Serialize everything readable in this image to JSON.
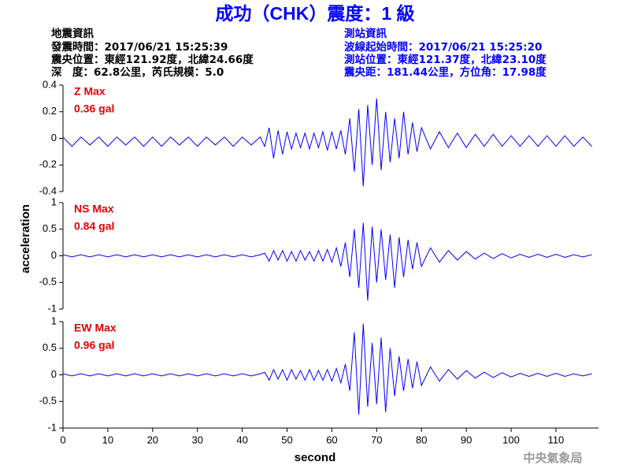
{
  "header": {
    "title": "成功（CHK）震度：1 級",
    "left_lines": [
      "地震資訊",
      "發震時間：2017/06/21 15:25:39",
      "震央位置：東經121.92度，北緯24.66度",
      "深　度：62.8公里，芮氏規模：5.0"
    ],
    "right_lines": [
      "測站資訊",
      "波線起始時間：2017/06/21 15:25:20",
      "測站位置：東經121.37度，北緯23.10度",
      "震央距：181.44公里，方位角：17.98度"
    ]
  },
  "axes": {
    "xlabel": "second",
    "ylabel": "acceleration"
  },
  "footer": "中央氣象局",
  "chart_data": [
    {
      "type": "line",
      "label": "Z Max",
      "annotation": "0.36 gal",
      "color": "#0000ff",
      "xlim": [
        0,
        119.5
      ],
      "ylim": [
        -0.4,
        0.4
      ],
      "yticks": [
        -0.4,
        -0.2,
        0,
        0.2,
        0.4
      ],
      "x": [
        0,
        2,
        4,
        6,
        8,
        10,
        12,
        14,
        16,
        18,
        20,
        22,
        24,
        26,
        28,
        30,
        32,
        34,
        36,
        38,
        40,
        42,
        44,
        45,
        46,
        47,
        48,
        49,
        50,
        51,
        52,
        53,
        54,
        55,
        56,
        57,
        58,
        59,
        60,
        61,
        62,
        63,
        64,
        65,
        66,
        67,
        68,
        69,
        70,
        71,
        72,
        73,
        74,
        75,
        76,
        77,
        78,
        79,
        80,
        82,
        84,
        86,
        88,
        90,
        92,
        94,
        96,
        98,
        100,
        102,
        104,
        106,
        108,
        110,
        112,
        114,
        116,
        118
      ],
      "values": [
        0.01,
        -0.06,
        0.01,
        -0.05,
        0.01,
        -0.06,
        0.01,
        -0.05,
        0.01,
        -0.06,
        0.01,
        -0.06,
        0.01,
        -0.05,
        0.01,
        -0.06,
        0.01,
        -0.05,
        0.01,
        -0.06,
        0.01,
        -0.05,
        0.01,
        -0.06,
        0.08,
        -0.15,
        0.06,
        -0.12,
        0.05,
        -0.08,
        0.04,
        -0.07,
        0.04,
        -0.08,
        0.04,
        -0.07,
        0.05,
        -0.09,
        0.05,
        -0.08,
        0.06,
        -0.12,
        0.15,
        -0.25,
        0.22,
        -0.36,
        0.25,
        -0.2,
        0.3,
        -0.24,
        0.2,
        -0.18,
        0.15,
        -0.15,
        0.2,
        -0.12,
        0.12,
        -0.1,
        0.08,
        -0.08,
        0.05,
        -0.07,
        0.04,
        -0.07,
        0.03,
        -0.06,
        0.03,
        -0.06,
        0.02,
        -0.06,
        0.02,
        -0.06,
        0.02,
        -0.06,
        0.02,
        -0.06,
        0.01,
        -0.06
      ]
    },
    {
      "type": "line",
      "label": "NS Max",
      "annotation": "0.84 gal",
      "color": "#0000ff",
      "xlim": [
        0,
        119.5
      ],
      "ylim": [
        -1,
        1
      ],
      "yticks": [
        -1,
        -0.5,
        0,
        0.5,
        1
      ],
      "x": [
        0,
        2,
        4,
        6,
        8,
        10,
        12,
        14,
        16,
        18,
        20,
        22,
        24,
        26,
        28,
        30,
        32,
        34,
        36,
        38,
        40,
        42,
        44,
        45,
        46,
        47,
        48,
        49,
        50,
        51,
        52,
        53,
        54,
        55,
        56,
        57,
        58,
        59,
        60,
        61,
        62,
        63,
        64,
        65,
        66,
        67,
        68,
        69,
        70,
        71,
        72,
        73,
        74,
        75,
        76,
        77,
        78,
        79,
        80,
        82,
        84,
        86,
        88,
        90,
        92,
        94,
        96,
        98,
        100,
        102,
        104,
        106,
        108,
        110,
        112,
        114,
        116,
        118
      ],
      "values": [
        0.02,
        -0.02,
        0.02,
        -0.02,
        0.02,
        -0.02,
        0.02,
        -0.02,
        0.02,
        -0.02,
        0.02,
        -0.02,
        0.02,
        -0.02,
        0.02,
        -0.02,
        0.02,
        -0.02,
        0.02,
        -0.02,
        0.02,
        -0.02,
        0.02,
        0.05,
        -0.1,
        0.1,
        -0.08,
        0.1,
        -0.1,
        0.08,
        -0.1,
        0.1,
        -0.08,
        0.08,
        -0.1,
        0.1,
        -0.1,
        0.12,
        -0.12,
        0.15,
        -0.2,
        0.25,
        -0.4,
        0.5,
        -0.6,
        0.62,
        -0.84,
        0.55,
        -0.5,
        0.5,
        -0.45,
        0.4,
        -0.6,
        0.35,
        -0.4,
        0.3,
        -0.25,
        0.25,
        -0.2,
        0.15,
        -0.12,
        0.1,
        -0.08,
        0.08,
        -0.06,
        0.05,
        -0.05,
        0.04,
        -0.04,
        0.03,
        -0.03,
        0.03,
        -0.03,
        0.03,
        -0.03,
        0.02,
        -0.02,
        0.02
      ]
    },
    {
      "type": "line",
      "label": "EW Max",
      "annotation": "0.96 gal",
      "color": "#0000ff",
      "xlim": [
        0,
        119.5
      ],
      "ylim": [
        -1,
        1
      ],
      "yticks": [
        -1,
        -0.5,
        0,
        0.5,
        1
      ],
      "xticks": [
        0,
        10,
        20,
        30,
        40,
        50,
        60,
        70,
        80,
        90,
        100,
        110
      ],
      "x": [
        0,
        2,
        4,
        6,
        8,
        10,
        12,
        14,
        16,
        18,
        20,
        22,
        24,
        26,
        28,
        30,
        32,
        34,
        36,
        38,
        40,
        42,
        44,
        45,
        46,
        47,
        48,
        49,
        50,
        51,
        52,
        53,
        54,
        55,
        56,
        57,
        58,
        59,
        60,
        61,
        62,
        63,
        64,
        65,
        66,
        67,
        68,
        69,
        70,
        71,
        72,
        73,
        74,
        75,
        76,
        77,
        78,
        79,
        80,
        82,
        84,
        86,
        88,
        90,
        92,
        94,
        96,
        98,
        100,
        102,
        104,
        106,
        108,
        110,
        112,
        114,
        116,
        118
      ],
      "values": [
        0.02,
        -0.02,
        0.02,
        -0.02,
        0.02,
        -0.02,
        0.02,
        -0.02,
        0.02,
        -0.02,
        0.02,
        -0.02,
        0.02,
        -0.02,
        0.02,
        -0.02,
        0.02,
        -0.02,
        0.02,
        -0.02,
        0.02,
        -0.02,
        0.02,
        0.05,
        -0.1,
        0.1,
        -0.08,
        0.1,
        -0.1,
        0.1,
        -0.08,
        0.08,
        -0.1,
        0.1,
        -0.1,
        0.08,
        -0.1,
        0.1,
        -0.12,
        0.12,
        -0.15,
        0.2,
        -0.3,
        0.8,
        -0.75,
        0.96,
        -0.6,
        0.6,
        -0.55,
        0.7,
        -0.7,
        0.5,
        -0.4,
        0.35,
        -0.3,
        0.3,
        -0.25,
        0.25,
        -0.2,
        0.15,
        -0.12,
        0.1,
        -0.08,
        0.08,
        -0.06,
        0.05,
        -0.05,
        0.04,
        -0.04,
        0.03,
        -0.03,
        0.03,
        -0.03,
        0.03,
        -0.03,
        0.02,
        -0.02,
        0.02
      ]
    }
  ]
}
